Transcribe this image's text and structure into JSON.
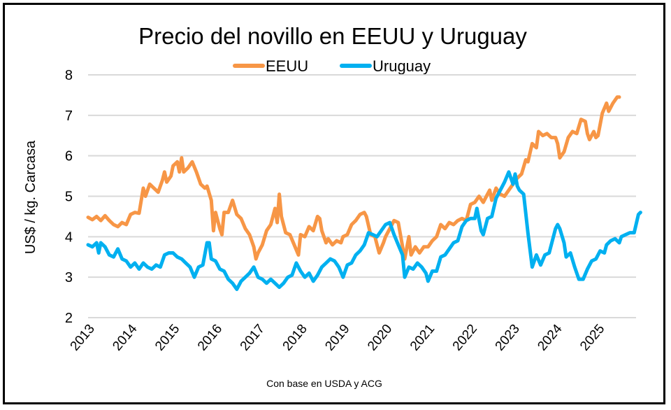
{
  "chart_data": {
    "type": "line",
    "title": "Precio del novillo en EEUU y Uruguay",
    "xlabel": "",
    "ylabel": "US$ / kg. Carcasa",
    "source_note": "Con base en USDA y ACG",
    "ylim": [
      2,
      8
    ],
    "yticks": [
      "2",
      "3",
      "4",
      "5",
      "6",
      "7",
      "8"
    ],
    "xlim": [
      2013,
      2025.9
    ],
    "xticks": [
      "2013",
      "2014",
      "2015",
      "2016",
      "2017",
      "2018",
      "2019",
      "2020",
      "2021",
      "2022",
      "2023",
      "2024",
      "2025"
    ],
    "grid": true,
    "legend_position": "top-center",
    "series": [
      {
        "name": "EEUU",
        "color": "#f79646",
        "points": [
          [
            2013.0,
            4.48
          ],
          [
            2013.1,
            4.42
          ],
          [
            2013.2,
            4.5
          ],
          [
            2013.3,
            4.4
          ],
          [
            2013.4,
            4.52
          ],
          [
            2013.5,
            4.4
          ],
          [
            2013.6,
            4.3
          ],
          [
            2013.7,
            4.25
          ],
          [
            2013.8,
            4.35
          ],
          [
            2013.9,
            4.3
          ],
          [
            2014.0,
            4.55
          ],
          [
            2014.1,
            4.6
          ],
          [
            2014.2,
            4.58
          ],
          [
            2014.3,
            5.2
          ],
          [
            2014.35,
            5.0
          ],
          [
            2014.45,
            5.3
          ],
          [
            2014.55,
            5.2
          ],
          [
            2014.65,
            5.1
          ],
          [
            2014.75,
            5.4
          ],
          [
            2014.8,
            5.6
          ],
          [
            2014.85,
            5.35
          ],
          [
            2014.95,
            5.5
          ],
          [
            2015.0,
            5.75
          ],
          [
            2015.1,
            5.85
          ],
          [
            2015.15,
            5.6
          ],
          [
            2015.2,
            5.95
          ],
          [
            2015.25,
            5.6
          ],
          [
            2015.35,
            5.7
          ],
          [
            2015.45,
            5.85
          ],
          [
            2015.55,
            5.6
          ],
          [
            2015.65,
            5.3
          ],
          [
            2015.75,
            5.2
          ],
          [
            2015.8,
            5.25
          ],
          [
            2015.9,
            4.9
          ],
          [
            2015.95,
            4.15
          ],
          [
            2016.0,
            4.6
          ],
          [
            2016.1,
            4.2
          ],
          [
            2016.15,
            4.05
          ],
          [
            2016.2,
            4.6
          ],
          [
            2016.3,
            4.6
          ],
          [
            2016.4,
            4.9
          ],
          [
            2016.5,
            4.55
          ],
          [
            2016.6,
            4.45
          ],
          [
            2016.7,
            4.2
          ],
          [
            2016.8,
            4.05
          ],
          [
            2016.9,
            3.75
          ],
          [
            2016.95,
            3.45
          ],
          [
            2017.0,
            3.6
          ],
          [
            2017.1,
            3.8
          ],
          [
            2017.2,
            4.15
          ],
          [
            2017.3,
            4.3
          ],
          [
            2017.4,
            4.7
          ],
          [
            2017.45,
            4.35
          ],
          [
            2017.5,
            5.05
          ],
          [
            2017.55,
            4.5
          ],
          [
            2017.65,
            4.1
          ],
          [
            2017.75,
            4.05
          ],
          [
            2017.85,
            3.8
          ],
          [
            2017.95,
            3.55
          ],
          [
            2018.0,
            4.05
          ],
          [
            2018.1,
            4.0
          ],
          [
            2018.2,
            4.25
          ],
          [
            2018.3,
            4.15
          ],
          [
            2018.4,
            4.5
          ],
          [
            2018.45,
            4.45
          ],
          [
            2018.5,
            4.15
          ],
          [
            2018.6,
            3.85
          ],
          [
            2018.65,
            3.95
          ],
          [
            2018.75,
            3.8
          ],
          [
            2018.85,
            3.9
          ],
          [
            2018.95,
            3.85
          ],
          [
            2019.0,
            4.0
          ],
          [
            2019.1,
            4.05
          ],
          [
            2019.2,
            4.3
          ],
          [
            2019.3,
            4.4
          ],
          [
            2019.4,
            4.55
          ],
          [
            2019.5,
            4.6
          ],
          [
            2019.55,
            4.5
          ],
          [
            2019.65,
            4.05
          ],
          [
            2019.75,
            4.0
          ],
          [
            2019.85,
            3.6
          ],
          [
            2019.95,
            3.85
          ],
          [
            2020.0,
            4.0
          ],
          [
            2020.1,
            4.2
          ],
          [
            2020.2,
            4.4
          ],
          [
            2020.3,
            4.35
          ],
          [
            2020.35,
            4.05
          ],
          [
            2020.45,
            3.45
          ],
          [
            2020.55,
            4.0
          ],
          [
            2020.6,
            3.55
          ],
          [
            2020.7,
            3.75
          ],
          [
            2020.8,
            3.6
          ],
          [
            2020.9,
            3.75
          ],
          [
            2021.0,
            3.75
          ],
          [
            2021.1,
            3.9
          ],
          [
            2021.2,
            4.0
          ],
          [
            2021.3,
            4.3
          ],
          [
            2021.4,
            4.2
          ],
          [
            2021.5,
            4.35
          ],
          [
            2021.6,
            4.3
          ],
          [
            2021.7,
            4.4
          ],
          [
            2021.8,
            4.45
          ],
          [
            2021.9,
            4.4
          ],
          [
            2022.0,
            4.8
          ],
          [
            2022.1,
            4.85
          ],
          [
            2022.2,
            5.0
          ],
          [
            2022.3,
            4.85
          ],
          [
            2022.4,
            5.05
          ],
          [
            2022.45,
            5.15
          ],
          [
            2022.5,
            4.9
          ],
          [
            2022.6,
            5.2
          ],
          [
            2022.7,
            5.05
          ],
          [
            2022.8,
            5.0
          ],
          [
            2022.9,
            5.15
          ],
          [
            2023.0,
            5.3
          ],
          [
            2023.1,
            5.45
          ],
          [
            2023.2,
            5.55
          ],
          [
            2023.3,
            5.9
          ],
          [
            2023.35,
            5.85
          ],
          [
            2023.45,
            6.3
          ],
          [
            2023.55,
            6.2
          ],
          [
            2023.6,
            6.6
          ],
          [
            2023.7,
            6.5
          ],
          [
            2023.8,
            6.55
          ],
          [
            2023.9,
            6.45
          ],
          [
            2024.0,
            6.45
          ],
          [
            2024.05,
            6.3
          ],
          [
            2024.1,
            5.95
          ],
          [
            2024.2,
            6.1
          ],
          [
            2024.3,
            6.45
          ],
          [
            2024.4,
            6.6
          ],
          [
            2024.5,
            6.55
          ],
          [
            2024.6,
            6.9
          ],
          [
            2024.7,
            6.85
          ],
          [
            2024.75,
            6.55
          ],
          [
            2024.8,
            6.4
          ],
          [
            2024.9,
            6.6
          ],
          [
            2024.95,
            6.45
          ],
          [
            2025.0,
            6.5
          ],
          [
            2025.1,
            7.05
          ],
          [
            2025.2,
            7.3
          ],
          [
            2025.25,
            7.1
          ],
          [
            2025.35,
            7.3
          ],
          [
            2025.45,
            7.45
          ],
          [
            2025.5,
            7.45
          ]
        ]
      },
      {
        "name": "Uruguay",
        "color": "#00b0f0",
        "points": [
          [
            2013.0,
            3.8
          ],
          [
            2013.1,
            3.75
          ],
          [
            2013.2,
            3.85
          ],
          [
            2013.25,
            3.6
          ],
          [
            2013.3,
            3.85
          ],
          [
            2013.4,
            3.75
          ],
          [
            2013.5,
            3.55
          ],
          [
            2013.6,
            3.5
          ],
          [
            2013.7,
            3.7
          ],
          [
            2013.8,
            3.45
          ],
          [
            2013.9,
            3.4
          ],
          [
            2014.0,
            3.25
          ],
          [
            2014.1,
            3.35
          ],
          [
            2014.2,
            3.2
          ],
          [
            2014.3,
            3.35
          ],
          [
            2014.4,
            3.25
          ],
          [
            2014.5,
            3.2
          ],
          [
            2014.6,
            3.3
          ],
          [
            2014.7,
            3.25
          ],
          [
            2014.8,
            3.55
          ],
          [
            2014.9,
            3.6
          ],
          [
            2015.0,
            3.6
          ],
          [
            2015.1,
            3.5
          ],
          [
            2015.2,
            3.45
          ],
          [
            2015.3,
            3.35
          ],
          [
            2015.4,
            3.25
          ],
          [
            2015.5,
            3.0
          ],
          [
            2015.6,
            3.25
          ],
          [
            2015.7,
            3.3
          ],
          [
            2015.8,
            3.85
          ],
          [
            2015.85,
            3.85
          ],
          [
            2015.9,
            3.45
          ],
          [
            2016.0,
            3.4
          ],
          [
            2016.1,
            3.2
          ],
          [
            2016.2,
            3.15
          ],
          [
            2016.3,
            2.95
          ],
          [
            2016.4,
            2.85
          ],
          [
            2016.5,
            2.7
          ],
          [
            2016.6,
            2.9
          ],
          [
            2016.7,
            3.0
          ],
          [
            2016.8,
            3.1
          ],
          [
            2016.9,
            3.25
          ],
          [
            2017.0,
            3.0
          ],
          [
            2017.1,
            2.95
          ],
          [
            2017.2,
            2.85
          ],
          [
            2017.3,
            2.95
          ],
          [
            2017.4,
            2.85
          ],
          [
            2017.5,
            2.75
          ],
          [
            2017.6,
            2.85
          ],
          [
            2017.7,
            3.0
          ],
          [
            2017.8,
            3.05
          ],
          [
            2017.9,
            3.35
          ],
          [
            2018.0,
            3.15
          ],
          [
            2018.1,
            3.0
          ],
          [
            2018.2,
            3.1
          ],
          [
            2018.3,
            2.9
          ],
          [
            2018.4,
            3.05
          ],
          [
            2018.5,
            3.25
          ],
          [
            2018.6,
            3.35
          ],
          [
            2018.7,
            3.45
          ],
          [
            2018.8,
            3.4
          ],
          [
            2018.9,
            3.25
          ],
          [
            2019.0,
            3.0
          ],
          [
            2019.1,
            3.3
          ],
          [
            2019.2,
            3.35
          ],
          [
            2019.3,
            3.55
          ],
          [
            2019.4,
            3.65
          ],
          [
            2019.5,
            3.8
          ],
          [
            2019.6,
            4.1
          ],
          [
            2019.7,
            4.05
          ],
          [
            2019.8,
            4.0
          ],
          [
            2019.9,
            4.15
          ],
          [
            2020.0,
            4.3
          ],
          [
            2020.1,
            4.35
          ],
          [
            2020.2,
            4.05
          ],
          [
            2020.3,
            3.8
          ],
          [
            2020.4,
            3.55
          ],
          [
            2020.45,
            3.0
          ],
          [
            2020.55,
            3.25
          ],
          [
            2020.65,
            3.2
          ],
          [
            2020.75,
            3.35
          ],
          [
            2020.85,
            3.25
          ],
          [
            2020.95,
            3.1
          ],
          [
            2021.0,
            2.9
          ],
          [
            2021.1,
            3.15
          ],
          [
            2021.2,
            3.15
          ],
          [
            2021.3,
            3.5
          ],
          [
            2021.4,
            3.55
          ],
          [
            2021.5,
            3.7
          ],
          [
            2021.6,
            3.85
          ],
          [
            2021.7,
            3.9
          ],
          [
            2021.8,
            4.25
          ],
          [
            2021.9,
            4.4
          ],
          [
            2022.0,
            4.45
          ],
          [
            2022.1,
            4.45
          ],
          [
            2022.15,
            4.7
          ],
          [
            2022.25,
            4.15
          ],
          [
            2022.3,
            4.05
          ],
          [
            2022.4,
            4.45
          ],
          [
            2022.5,
            4.5
          ],
          [
            2022.6,
            4.95
          ],
          [
            2022.7,
            5.15
          ],
          [
            2022.8,
            5.35
          ],
          [
            2022.9,
            5.6
          ],
          [
            2023.0,
            5.3
          ],
          [
            2023.05,
            5.55
          ],
          [
            2023.1,
            5.25
          ],
          [
            2023.15,
            5.15
          ],
          [
            2023.25,
            5.05
          ],
          [
            2023.35,
            4.1
          ],
          [
            2023.45,
            3.25
          ],
          [
            2023.55,
            3.55
          ],
          [
            2023.65,
            3.3
          ],
          [
            2023.75,
            3.55
          ],
          [
            2023.85,
            3.6
          ],
          [
            2024.0,
            4.2
          ],
          [
            2024.05,
            4.3
          ],
          [
            2024.1,
            4.2
          ],
          [
            2024.2,
            3.85
          ],
          [
            2024.25,
            3.5
          ],
          [
            2024.35,
            3.6
          ],
          [
            2024.45,
            3.25
          ],
          [
            2024.55,
            2.95
          ],
          [
            2024.65,
            2.95
          ],
          [
            2024.75,
            3.2
          ],
          [
            2024.85,
            3.4
          ],
          [
            2024.95,
            3.45
          ],
          [
            2025.05,
            3.65
          ],
          [
            2025.15,
            3.6
          ],
          [
            2025.2,
            3.8
          ],
          [
            2025.3,
            3.9
          ],
          [
            2025.4,
            3.95
          ],
          [
            2025.5,
            3.85
          ],
          [
            2025.55,
            4.0
          ],
          [
            2025.65,
            4.05
          ],
          [
            2025.75,
            4.1
          ],
          [
            2025.85,
            4.1
          ],
          [
            2025.95,
            4.55
          ],
          [
            2026.0,
            4.6
          ]
        ]
      }
    ]
  }
}
